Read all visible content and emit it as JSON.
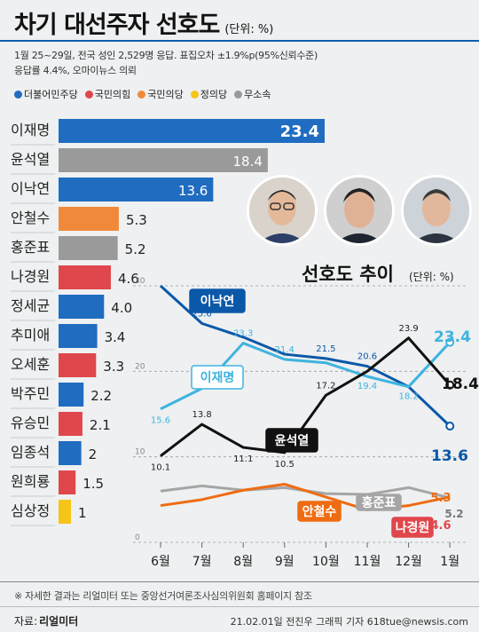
{
  "header": {
    "title": "차기 대선주자 선호도",
    "unit": "(단위: %)",
    "survey_line1": "1월 25~29일, 전국 성인 2,529명 응답. 표집오차 ±1.9%p(95%신뢰수준)",
    "survey_line2": "응답률 4.4%, 오마이뉴스 의뢰"
  },
  "legend": [
    {
      "label": "더불어민주당",
      "color": "#1f6cc0"
    },
    {
      "label": "국민의힘",
      "color": "#e0474c"
    },
    {
      "label": "국민의당",
      "color": "#f08a3a"
    },
    {
      "label": "정의당",
      "color": "#f5c518"
    },
    {
      "label": "무소속",
      "color": "#9a9a9a"
    }
  ],
  "chart_data": [
    {
      "type": "bar",
      "orientation": "horizontal",
      "categories": [
        "이재명",
        "윤석열",
        "이낙연",
        "안철수",
        "홍준표",
        "나경원",
        "정세균",
        "추미애",
        "오세훈",
        "박주민",
        "유승민",
        "임종석",
        "원희룡",
        "심상정"
      ],
      "values": [
        23.4,
        18.4,
        13.6,
        5.3,
        5.2,
        4.6,
        4.0,
        3.4,
        3.3,
        2.2,
        2.1,
        2,
        1.5,
        1
      ],
      "value_labels": [
        "23.4",
        "18.4",
        "13.6",
        "5.3",
        "5.2",
        "4.6",
        "4.0",
        "3.4",
        "3.3",
        "2.2",
        "2.1",
        "2",
        "1.5",
        "1"
      ],
      "colors": [
        "#1f6cc0",
        "#9a9a9a",
        "#1f6cc0",
        "#f08a3a",
        "#9a9a9a",
        "#e0474c",
        "#1f6cc0",
        "#1f6cc0",
        "#e0474c",
        "#1f6cc0",
        "#e0474c",
        "#1f6cc0",
        "#e0474c",
        "#f5c518"
      ]
    },
    {
      "type": "line",
      "title": "선호도 추이",
      "unit": "(단위: %)",
      "x": [
        "6월",
        "7월",
        "8월",
        "9월",
        "10월",
        "11월",
        "12월",
        "1월"
      ],
      "y_ticks": [
        0,
        10,
        20,
        30
      ],
      "ylim": [
        0,
        30
      ],
      "series": [
        {
          "name": "이낙연",
          "color": "#0b58a8",
          "values": [
            30.0,
            25.6,
            24.0,
            22.0,
            21.5,
            20.6,
            18.2,
            13.6
          ],
          "point_labels": [
            "",
            "25.6",
            "",
            "",
            "21.5",
            "20.6",
            "",
            "13.6"
          ]
        },
        {
          "name": "이재명",
          "color": "#3fb3df",
          "values": [
            15.6,
            18.0,
            23.3,
            21.4,
            21.0,
            19.4,
            18.2,
            23.4
          ],
          "point_labels": [
            "15.6",
            "",
            "23.3",
            "21.4",
            "",
            "19.4",
            "18.2",
            "23.4"
          ]
        },
        {
          "name": "윤석열",
          "color": "#111111",
          "values": [
            10.1,
            13.8,
            11.1,
            10.5,
            17.2,
            20.0,
            23.9,
            18.4
          ],
          "point_labels": [
            "10.1",
            "13.8",
            "11.1",
            "10.5",
            "17.2",
            "",
            "23.9",
            "18.4"
          ]
        },
        {
          "name": "홍준표",
          "color": "#a5a5a5",
          "values": [
            6.0,
            6.6,
            6.1,
            6.4,
            5.7,
            5.6,
            6.4,
            5.2
          ],
          "point_labels": [
            "",
            "",
            "",
            "",
            "",
            "",
            "",
            "5.2"
          ]
        },
        {
          "name": "안철수",
          "color": "#ef6c12",
          "values": [
            4.3,
            5.0,
            6.1,
            6.8,
            5.3,
            3.8,
            4.3,
            5.3
          ],
          "point_labels": [
            "",
            "",
            "",
            "",
            "",
            "",
            "",
            "5.3"
          ]
        },
        {
          "name": "나경원",
          "color": "#e0474c",
          "values": [
            null,
            null,
            null,
            null,
            null,
            null,
            null,
            4.6
          ],
          "point_labels": [
            "",
            "",
            "",
            "",
            "",
            "",
            "",
            "4.6"
          ]
        }
      ]
    }
  ],
  "footer": {
    "note": "※ 자세한 결과는 리얼미터 또는 중앙선거여론조사심의위원회 홈페이지 참조",
    "source_label": "자료:",
    "source": "리얼미터",
    "credit": "21.02.01일 전진우 그래픽 기자 618tue@newsis.com"
  }
}
